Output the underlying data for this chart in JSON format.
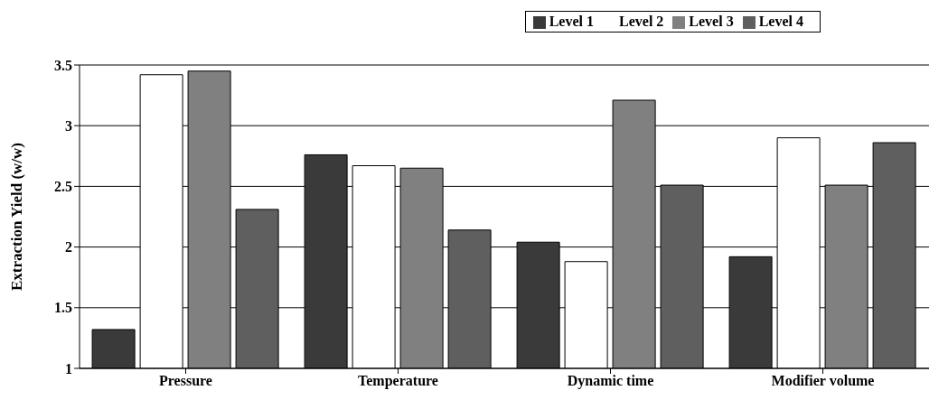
{
  "chart_data": {
    "type": "bar",
    "ylabel": "Extraction Yield (w/w)",
    "categories": [
      "Pressure",
      "Temperature",
      "Dynamic time",
      "Modifier volume"
    ],
    "series": [
      {
        "name": "Level 1",
        "color": "#3a3a3a",
        "values": [
          1.32,
          2.76,
          2.04,
          1.92
        ]
      },
      {
        "name": "Level 2",
        "color": "#ffffff",
        "values": [
          3.42,
          2.67,
          1.88,
          2.9
        ]
      },
      {
        "name": "Level 3",
        "color": "#808080",
        "values": [
          3.45,
          2.65,
          3.21,
          2.51
        ]
      },
      {
        "name": "Level 4",
        "color": "#5f5f5f",
        "values": [
          2.31,
          2.14,
          2.51,
          2.86
        ]
      }
    ],
    "ylim": [
      1,
      3.5
    ],
    "yticks": [
      1,
      1.5,
      2,
      2.5,
      3,
      3.5
    ],
    "grid": "y",
    "legend": "top right"
  }
}
